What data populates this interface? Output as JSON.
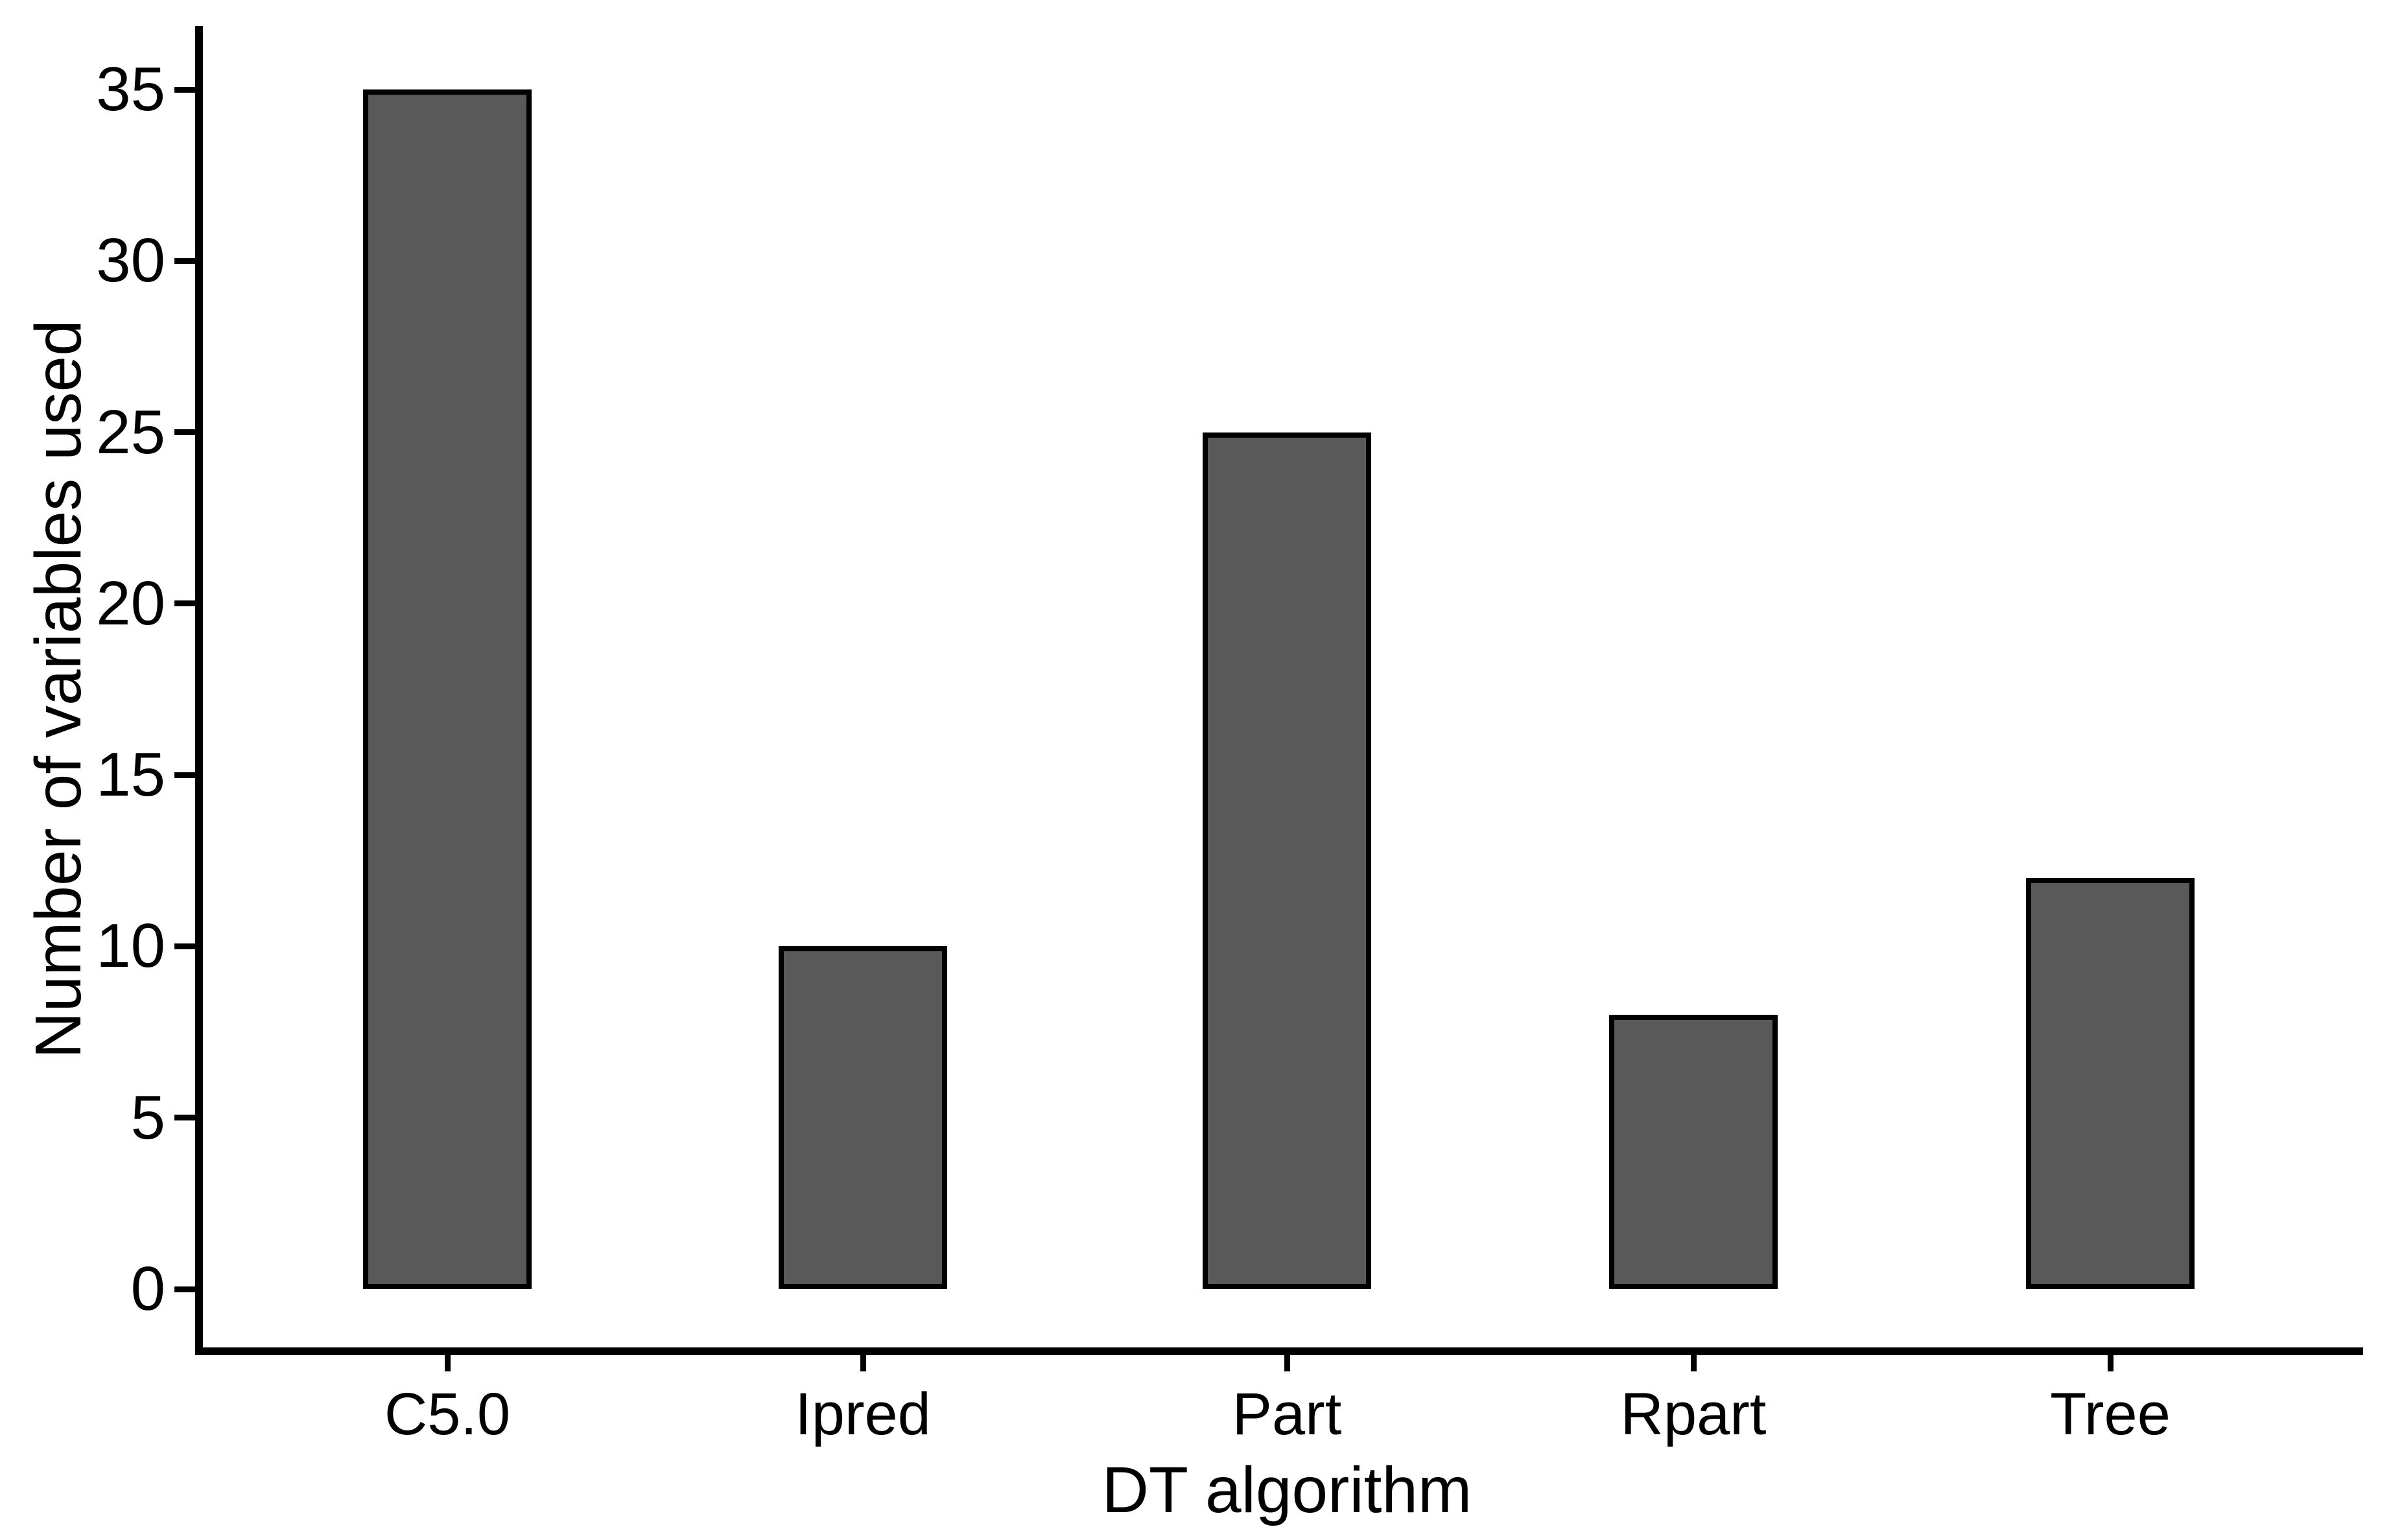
{
  "chart_data": {
    "type": "bar",
    "title": "",
    "categories": [
      "C5.0",
      "Ipred",
      "Part",
      "Rpart",
      "Tree"
    ],
    "values": [
      35,
      10,
      25,
      8,
      12
    ],
    "xlabel": "DT algorithm",
    "ylabel": "Number of variables used",
    "ylim": [
      0,
      35
    ],
    "yticks": [
      0,
      5,
      10,
      15,
      20,
      25,
      30,
      35
    ],
    "grid": false,
    "legend": false,
    "colors": {
      "bar_fill": "#595959",
      "bar_border": "#000000",
      "axis": "#000000",
      "text": "#000000",
      "background": "#ffffff"
    }
  }
}
